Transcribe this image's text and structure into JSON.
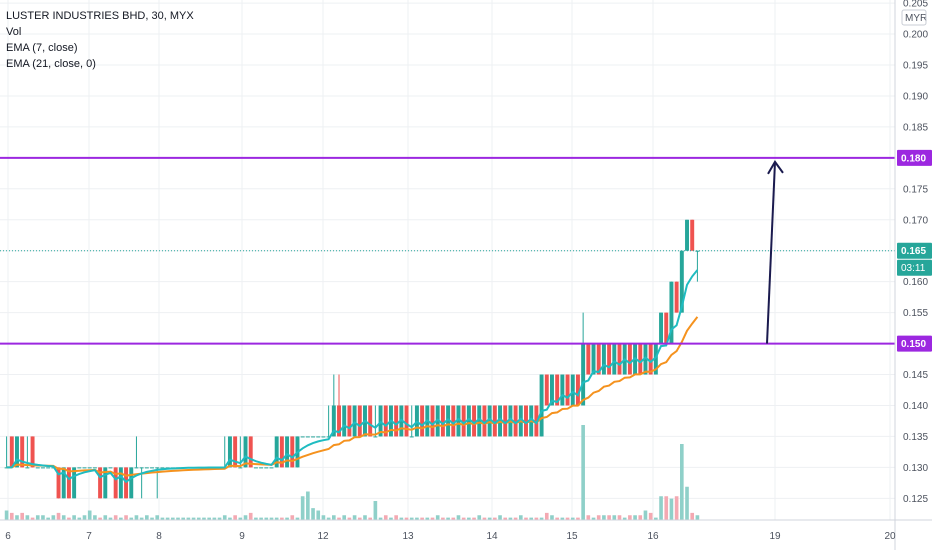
{
  "legend": {
    "symbol": "LUSTER INDUSTRIES BHD, 30, MYX",
    "vol": "Vol",
    "ema_fast": "EMA (7, close)",
    "ema_slow": "EMA (21, close, 0)"
  },
  "currency": "MYR",
  "countdown": "03:11",
  "colors": {
    "up": "#26a69a",
    "down": "#ef5350",
    "vol_up": "#8fd0c9",
    "vol_down": "#f4a9b2",
    "ema_fast": "#1fbcc1",
    "ema_slow": "#f5921e",
    "level": "#9c27e0",
    "arrow": "#1a1a4e",
    "last_price": "#26a69a",
    "grid": "#eef0f3"
  },
  "chart_data": {
    "type": "candlestick",
    "ylim": [
      0.1215,
      0.2055
    ],
    "y_ticks": [
      "0.125",
      "0.130",
      "0.135",
      "0.140",
      "0.145",
      "0.150",
      "0.155",
      "0.160",
      "0.165",
      "0.170",
      "0.175",
      "0.180",
      "0.185",
      "0.190",
      "0.195",
      "0.200",
      "0.205"
    ],
    "x_ticks": [
      "6",
      "7",
      "8",
      "9",
      "12",
      "13",
      "14",
      "15",
      "16",
      "19",
      "20"
    ],
    "horizontal_levels": [
      {
        "value": 0.18,
        "label": "0.180"
      },
      {
        "value": 0.15,
        "label": "0.150"
      }
    ],
    "last_price": {
      "value": 0.165,
      "label": "0.165"
    },
    "arrow": {
      "from_value": 0.15,
      "to_value": 0.18
    },
    "candles": [
      [
        0.13,
        0.135,
        0.13,
        0.13
      ],
      [
        0.135,
        0.135,
        0.13,
        0.13
      ],
      [
        0.13,
        0.135,
        0.13,
        0.135
      ],
      [
        0.135,
        0.135,
        0.13,
        0.13
      ],
      [
        0.13,
        0.135,
        0.13,
        0.13
      ],
      [
        0.135,
        0.135,
        0.13,
        0.13
      ],
      [
        0.13,
        0.13,
        0.13,
        0.13
      ],
      [
        0.13,
        0.13,
        0.13,
        0.13
      ],
      [
        0.13,
        0.13,
        0.13,
        0.13
      ],
      [
        0.13,
        0.13,
        0.13,
        0.13
      ],
      [
        0.13,
        0.13,
        0.125,
        0.125
      ],
      [
        0.125,
        0.13,
        0.125,
        0.13
      ],
      [
        0.13,
        0.13,
        0.125,
        0.125
      ],
      [
        0.125,
        0.13,
        0.125,
        0.13
      ],
      [
        0.13,
        0.13,
        0.13,
        0.13
      ],
      [
        0.13,
        0.13,
        0.13,
        0.13
      ],
      [
        0.13,
        0.13,
        0.13,
        0.13
      ],
      [
        0.13,
        0.13,
        0.13,
        0.13
      ],
      [
        0.13,
        0.13,
        0.125,
        0.125
      ],
      [
        0.125,
        0.13,
        0.125,
        0.13
      ],
      [
        0.13,
        0.13,
        0.13,
        0.13
      ],
      [
        0.13,
        0.13,
        0.125,
        0.125
      ],
      [
        0.125,
        0.13,
        0.125,
        0.13
      ],
      [
        0.13,
        0.13,
        0.125,
        0.125
      ],
      [
        0.125,
        0.13,
        0.125,
        0.13
      ],
      [
        0.13,
        0.135,
        0.13,
        0.13
      ],
      [
        0.13,
        0.13,
        0.125,
        0.13
      ],
      [
        0.13,
        0.13,
        0.13,
        0.13
      ],
      [
        0.13,
        0.13,
        0.13,
        0.13
      ],
      [
        0.13,
        0.13,
        0.125,
        0.13
      ],
      [
        0.13,
        0.13,
        0.13,
        0.13
      ],
      [
        0.13,
        0.13,
        0.13,
        0.13
      ],
      [
        0.13,
        0.13,
        0.13,
        0.13
      ],
      [
        0.13,
        0.13,
        0.13,
        0.13
      ],
      [
        0.13,
        0.13,
        0.13,
        0.13
      ],
      [
        0.13,
        0.13,
        0.13,
        0.13
      ],
      [
        0.13,
        0.13,
        0.13,
        0.13
      ],
      [
        0.13,
        0.13,
        0.13,
        0.13
      ],
      [
        0.13,
        0.13,
        0.13,
        0.13
      ],
      [
        0.13,
        0.13,
        0.13,
        0.13
      ],
      [
        0.13,
        0.13,
        0.13,
        0.13
      ],
      [
        0.13,
        0.13,
        0.13,
        0.13
      ],
      [
        0.13,
        0.135,
        0.13,
        0.13
      ],
      [
        0.13,
        0.135,
        0.13,
        0.135
      ],
      [
        0.135,
        0.135,
        0.13,
        0.13
      ],
      [
        0.13,
        0.135,
        0.13,
        0.13
      ],
      [
        0.13,
        0.135,
        0.13,
        0.135
      ],
      [
        0.135,
        0.135,
        0.13,
        0.13
      ],
      [
        0.13,
        0.13,
        0.13,
        0.13
      ],
      [
        0.13,
        0.13,
        0.13,
        0.13
      ],
      [
        0.13,
        0.13,
        0.13,
        0.13
      ],
      [
        0.13,
        0.13,
        0.13,
        0.13
      ],
      [
        0.13,
        0.135,
        0.13,
        0.135
      ],
      [
        0.135,
        0.135,
        0.13,
        0.13
      ],
      [
        0.13,
        0.135,
        0.13,
        0.135
      ],
      [
        0.135,
        0.135,
        0.13,
        0.13
      ],
      [
        0.13,
        0.135,
        0.13,
        0.135
      ],
      [
        0.135,
        0.135,
        0.135,
        0.135
      ],
      [
        0.135,
        0.135,
        0.135,
        0.135
      ],
      [
        0.135,
        0.135,
        0.135,
        0.135
      ],
      [
        0.135,
        0.135,
        0.135,
        0.135
      ],
      [
        0.135,
        0.135,
        0.135,
        0.135
      ],
      [
        0.135,
        0.14,
        0.135,
        0.135
      ],
      [
        0.135,
        0.145,
        0.135,
        0.14
      ],
      [
        0.14,
        0.145,
        0.135,
        0.135
      ],
      [
        0.135,
        0.14,
        0.135,
        0.14
      ],
      [
        0.14,
        0.14,
        0.135,
        0.135
      ],
      [
        0.135,
        0.14,
        0.135,
        0.14
      ],
      [
        0.14,
        0.14,
        0.135,
        0.135
      ],
      [
        0.135,
        0.14,
        0.135,
        0.14
      ],
      [
        0.14,
        0.14,
        0.135,
        0.135
      ],
      [
        0.135,
        0.14,
        0.135,
        0.135
      ],
      [
        0.135,
        0.14,
        0.135,
        0.14
      ],
      [
        0.14,
        0.14,
        0.135,
        0.135
      ],
      [
        0.135,
        0.14,
        0.135,
        0.14
      ],
      [
        0.14,
        0.14,
        0.135,
        0.135
      ],
      [
        0.135,
        0.14,
        0.135,
        0.14
      ],
      [
        0.14,
        0.14,
        0.135,
        0.135
      ],
      [
        0.135,
        0.14,
        0.135,
        0.135
      ],
      [
        0.135,
        0.14,
        0.135,
        0.14
      ],
      [
        0.14,
        0.14,
        0.135,
        0.135
      ],
      [
        0.135,
        0.14,
        0.135,
        0.14
      ],
      [
        0.14,
        0.14,
        0.135,
        0.135
      ],
      [
        0.135,
        0.14,
        0.135,
        0.14
      ],
      [
        0.14,
        0.14,
        0.135,
        0.135
      ],
      [
        0.135,
        0.14,
        0.135,
        0.14
      ],
      [
        0.14,
        0.14,
        0.135,
        0.135
      ],
      [
        0.135,
        0.14,
        0.135,
        0.14
      ],
      [
        0.14,
        0.14,
        0.135,
        0.135
      ],
      [
        0.135,
        0.14,
        0.135,
        0.14
      ],
      [
        0.14,
        0.14,
        0.135,
        0.135
      ],
      [
        0.135,
        0.14,
        0.135,
        0.14
      ],
      [
        0.14,
        0.14,
        0.135,
        0.135
      ],
      [
        0.135,
        0.14,
        0.135,
        0.14
      ],
      [
        0.14,
        0.14,
        0.135,
        0.135
      ],
      [
        0.135,
        0.14,
        0.135,
        0.14
      ],
      [
        0.14,
        0.14,
        0.135,
        0.135
      ],
      [
        0.135,
        0.14,
        0.135,
        0.14
      ],
      [
        0.14,
        0.14,
        0.135,
        0.135
      ],
      [
        0.135,
        0.14,
        0.135,
        0.14
      ],
      [
        0.14,
        0.14,
        0.135,
        0.135
      ],
      [
        0.135,
        0.14,
        0.135,
        0.14
      ],
      [
        0.14,
        0.14,
        0.135,
        0.135
      ],
      [
        0.135,
        0.145,
        0.135,
        0.145
      ],
      [
        0.145,
        0.145,
        0.14,
        0.14
      ],
      [
        0.14,
        0.145,
        0.14,
        0.145
      ],
      [
        0.145,
        0.145,
        0.14,
        0.14
      ],
      [
        0.14,
        0.145,
        0.14,
        0.145
      ],
      [
        0.145,
        0.145,
        0.14,
        0.14
      ],
      [
        0.14,
        0.145,
        0.14,
        0.145
      ],
      [
        0.145,
        0.145,
        0.14,
        0.14
      ],
      [
        0.14,
        0.155,
        0.14,
        0.15
      ],
      [
        0.15,
        0.15,
        0.145,
        0.145
      ],
      [
        0.145,
        0.15,
        0.145,
        0.15
      ],
      [
        0.15,
        0.15,
        0.145,
        0.145
      ],
      [
        0.145,
        0.15,
        0.145,
        0.15
      ],
      [
        0.15,
        0.15,
        0.145,
        0.145
      ],
      [
        0.145,
        0.15,
        0.145,
        0.15
      ],
      [
        0.15,
        0.15,
        0.145,
        0.145
      ],
      [
        0.145,
        0.15,
        0.145,
        0.15
      ],
      [
        0.15,
        0.15,
        0.145,
        0.145
      ],
      [
        0.145,
        0.15,
        0.145,
        0.15
      ],
      [
        0.15,
        0.15,
        0.145,
        0.145
      ],
      [
        0.145,
        0.15,
        0.145,
        0.15
      ],
      [
        0.15,
        0.15,
        0.145,
        0.145
      ],
      [
        0.145,
        0.15,
        0.145,
        0.15
      ],
      [
        0.15,
        0.155,
        0.15,
        0.155
      ],
      [
        0.155,
        0.155,
        0.15,
        0.15
      ],
      [
        0.15,
        0.16,
        0.15,
        0.16
      ],
      [
        0.16,
        0.16,
        0.155,
        0.155
      ],
      [
        0.155,
        0.165,
        0.155,
        0.165
      ],
      [
        0.165,
        0.17,
        0.165,
        0.17
      ],
      [
        0.17,
        0.17,
        0.165,
        0.165
      ],
      [
        0.165,
        0.165,
        0.16,
        0.165
      ]
    ],
    "volume": [
      2,
      1.5,
      1,
      1.5,
      1,
      0.5,
      1,
      1,
      0.5,
      1,
      1.5,
      1,
      0.5,
      1,
      0.5,
      1,
      2,
      1,
      0.5,
      1,
      0.5,
      1,
      0.5,
      1,
      0.5,
      1,
      0.5,
      1,
      0.5,
      1,
      0.5,
      0.5,
      0.5,
      0.5,
      0.5,
      0.5,
      0.5,
      0.5,
      0.5,
      0.5,
      0.5,
      0.5,
      1,
      0.5,
      1,
      0.5,
      1,
      1.5,
      0.5,
      0.5,
      0.5,
      0.5,
      0.5,
      0.5,
      0.5,
      1,
      0.5,
      5,
      6,
      2.5,
      2,
      1,
      0.5,
      1,
      0.5,
      1,
      0.5,
      1,
      0.5,
      1,
      0.5,
      4,
      0.5,
      1,
      0.5,
      1,
      0.5,
      0.5,
      0.5,
      0.5,
      0.5,
      0.5,
      0.5,
      1,
      0.5,
      0.5,
      0.5,
      1,
      0.5,
      0.5,
      0.5,
      1,
      0.5,
      0.5,
      0.5,
      1,
      0.5,
      0.5,
      0.5,
      1,
      0.5,
      0.5,
      0.5,
      0.5,
      1.5,
      1,
      0.5,
      0.5,
      0.5,
      0.5,
      0.5,
      20,
      1,
      0.5,
      1,
      1,
      1,
      1,
      1,
      0.5,
      1,
      1,
      1,
      2,
      1.5,
      0.5,
      5,
      5,
      4.5,
      5,
      16,
      7,
      1.5,
      1
    ]
  }
}
